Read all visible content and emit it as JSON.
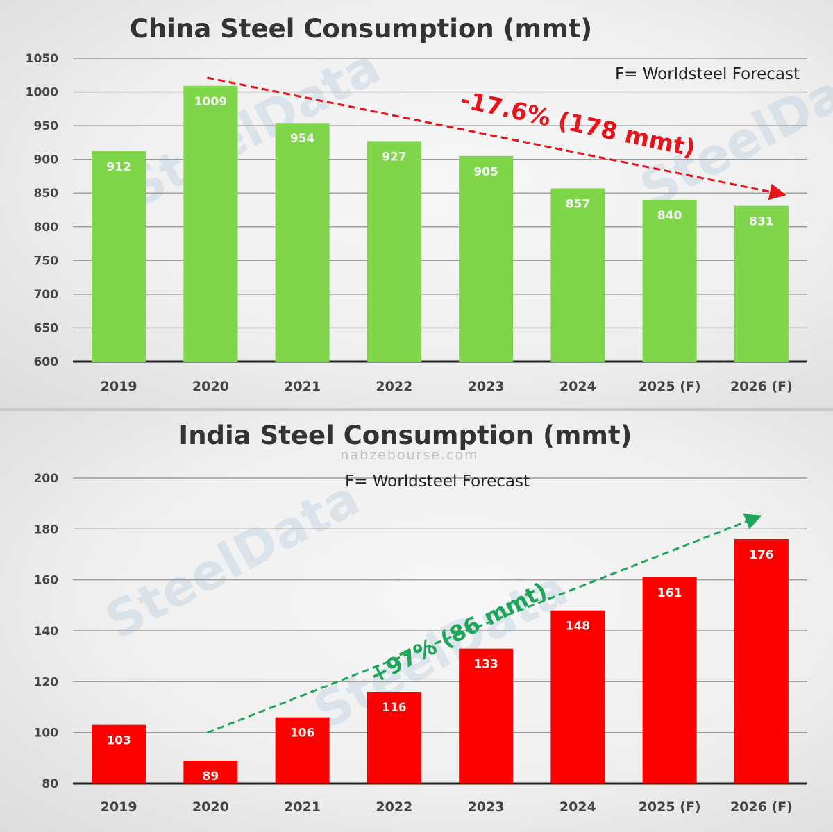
{
  "watermarks": {
    "brand": "SteelData",
    "site": "nabzebourse.com"
  },
  "chart_data": [
    {
      "type": "bar",
      "title": "China Steel Consumption (mmt)",
      "note": "F= Worldsteel Forecast",
      "categories": [
        "2019",
        "2020",
        "2021",
        "2022",
        "2023",
        "2024",
        "2025 (F)",
        "2026 (F)"
      ],
      "values": [
        912,
        1009,
        954,
        927,
        905,
        857,
        840,
        831
      ],
      "value_labels": [
        "912",
        "1009",
        "954",
        "927",
        "905",
        "857",
        "840",
        "831"
      ],
      "yticks": [
        "600",
        "650",
        "700",
        "750",
        "800",
        "850",
        "900",
        "950",
        "1000",
        "1050"
      ],
      "ylim": [
        600,
        1050
      ],
      "xlabel": "",
      "ylabel": "",
      "grid": true,
      "bar_color": "#7fd64a",
      "annotation": {
        "text": "-17.6% (178 mmt)",
        "color": "#e8141c",
        "arrow": "dashed",
        "from_category": "2020",
        "to_category": "2026 (F)",
        "direction": "down"
      }
    },
    {
      "type": "bar",
      "title": "India Steel Consumption (mmt)",
      "note": "F= Worldsteel Forecast",
      "categories": [
        "2019",
        "2020",
        "2021",
        "2022",
        "2023",
        "2024",
        "2025 (F)",
        "2026 (F)"
      ],
      "values": [
        103,
        89,
        106,
        116,
        133,
        148,
        161,
        176
      ],
      "value_labels": [
        "103",
        "89",
        "106",
        "116",
        "133",
        "148",
        "161",
        "176"
      ],
      "yticks": [
        "80",
        "100",
        "120",
        "140",
        "160",
        "180",
        "200"
      ],
      "ylim": [
        80,
        200
      ],
      "xlabel": "",
      "ylabel": "",
      "grid": true,
      "bar_color": "#fd0000",
      "annotation": {
        "text": "+97% (86 mmt)",
        "color": "#1ea65a",
        "arrow": "dashed",
        "from_category": "2020",
        "to_category": "2026 (F)",
        "direction": "up"
      }
    }
  ]
}
